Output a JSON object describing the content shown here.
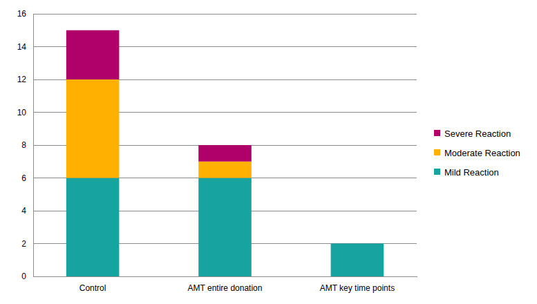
{
  "chart_data": {
    "type": "bar",
    "stacked": true,
    "categories": [
      "Control",
      "AMT entire donation",
      "AMT key time points"
    ],
    "series": [
      {
        "name": "Mild Reaction",
        "color": "#17a39f",
        "values": [
          6,
          6,
          2
        ]
      },
      {
        "name": "Moderate Reaction",
        "color": "#ffb000",
        "values": [
          6,
          1,
          0
        ]
      },
      {
        "name": "Severe Reaction",
        "color": "#b0006a",
        "values": [
          3,
          1,
          0
        ]
      }
    ],
    "ylim": [
      0,
      16
    ],
    "yticks": [
      0,
      2,
      4,
      6,
      8,
      10,
      12,
      14,
      16
    ],
    "grid": true,
    "legend": "right"
  }
}
